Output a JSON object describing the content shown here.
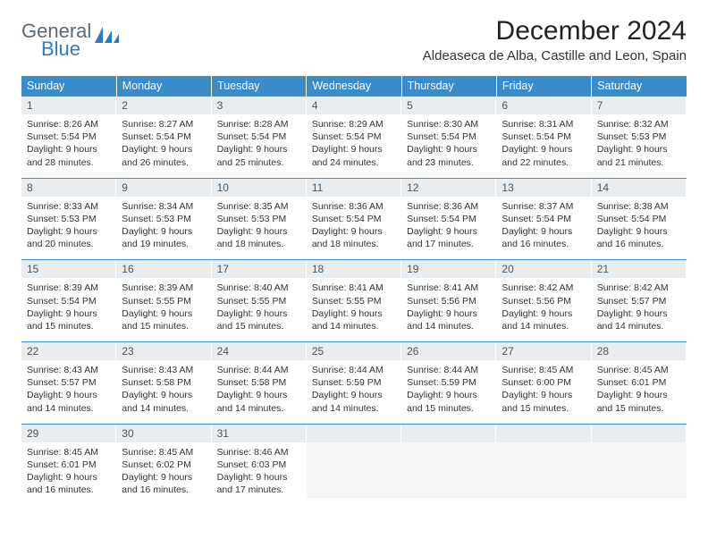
{
  "logo": {
    "textA": "General",
    "textB": "Blue",
    "colorA": "#5a6a7a",
    "colorB": "#2d7cc1"
  },
  "title": "December 2024",
  "location": "Aldeaseca de Alba, Castille and Leon, Spain",
  "colors": {
    "header_bg": "#3a8bc9",
    "header_text": "#ffffff",
    "daynum_bg": "#e9edf0",
    "daynum_text": "#4a5560",
    "row_border": "#3a8bc9",
    "body_text": "#333333"
  },
  "days_of_week": [
    "Sunday",
    "Monday",
    "Tuesday",
    "Wednesday",
    "Thursday",
    "Friday",
    "Saturday"
  ],
  "weeks": [
    [
      {
        "n": "1",
        "sunrise": "8:26 AM",
        "sunset": "5:54 PM",
        "daylight": "9 hours and 28 minutes."
      },
      {
        "n": "2",
        "sunrise": "8:27 AM",
        "sunset": "5:54 PM",
        "daylight": "9 hours and 26 minutes."
      },
      {
        "n": "3",
        "sunrise": "8:28 AM",
        "sunset": "5:54 PM",
        "daylight": "9 hours and 25 minutes."
      },
      {
        "n": "4",
        "sunrise": "8:29 AM",
        "sunset": "5:54 PM",
        "daylight": "9 hours and 24 minutes."
      },
      {
        "n": "5",
        "sunrise": "8:30 AM",
        "sunset": "5:54 PM",
        "daylight": "9 hours and 23 minutes."
      },
      {
        "n": "6",
        "sunrise": "8:31 AM",
        "sunset": "5:54 PM",
        "daylight": "9 hours and 22 minutes."
      },
      {
        "n": "7",
        "sunrise": "8:32 AM",
        "sunset": "5:53 PM",
        "daylight": "9 hours and 21 minutes."
      }
    ],
    [
      {
        "n": "8",
        "sunrise": "8:33 AM",
        "sunset": "5:53 PM",
        "daylight": "9 hours and 20 minutes."
      },
      {
        "n": "9",
        "sunrise": "8:34 AM",
        "sunset": "5:53 PM",
        "daylight": "9 hours and 19 minutes."
      },
      {
        "n": "10",
        "sunrise": "8:35 AM",
        "sunset": "5:53 PM",
        "daylight": "9 hours and 18 minutes."
      },
      {
        "n": "11",
        "sunrise": "8:36 AM",
        "sunset": "5:54 PM",
        "daylight": "9 hours and 18 minutes."
      },
      {
        "n": "12",
        "sunrise": "8:36 AM",
        "sunset": "5:54 PM",
        "daylight": "9 hours and 17 minutes."
      },
      {
        "n": "13",
        "sunrise": "8:37 AM",
        "sunset": "5:54 PM",
        "daylight": "9 hours and 16 minutes."
      },
      {
        "n": "14",
        "sunrise": "8:38 AM",
        "sunset": "5:54 PM",
        "daylight": "9 hours and 16 minutes."
      }
    ],
    [
      {
        "n": "15",
        "sunrise": "8:39 AM",
        "sunset": "5:54 PM",
        "daylight": "9 hours and 15 minutes."
      },
      {
        "n": "16",
        "sunrise": "8:39 AM",
        "sunset": "5:55 PM",
        "daylight": "9 hours and 15 minutes."
      },
      {
        "n": "17",
        "sunrise": "8:40 AM",
        "sunset": "5:55 PM",
        "daylight": "9 hours and 15 minutes."
      },
      {
        "n": "18",
        "sunrise": "8:41 AM",
        "sunset": "5:55 PM",
        "daylight": "9 hours and 14 minutes."
      },
      {
        "n": "19",
        "sunrise": "8:41 AM",
        "sunset": "5:56 PM",
        "daylight": "9 hours and 14 minutes."
      },
      {
        "n": "20",
        "sunrise": "8:42 AM",
        "sunset": "5:56 PM",
        "daylight": "9 hours and 14 minutes."
      },
      {
        "n": "21",
        "sunrise": "8:42 AM",
        "sunset": "5:57 PM",
        "daylight": "9 hours and 14 minutes."
      }
    ],
    [
      {
        "n": "22",
        "sunrise": "8:43 AM",
        "sunset": "5:57 PM",
        "daylight": "9 hours and 14 minutes."
      },
      {
        "n": "23",
        "sunrise": "8:43 AM",
        "sunset": "5:58 PM",
        "daylight": "9 hours and 14 minutes."
      },
      {
        "n": "24",
        "sunrise": "8:44 AM",
        "sunset": "5:58 PM",
        "daylight": "9 hours and 14 minutes."
      },
      {
        "n": "25",
        "sunrise": "8:44 AM",
        "sunset": "5:59 PM",
        "daylight": "9 hours and 14 minutes."
      },
      {
        "n": "26",
        "sunrise": "8:44 AM",
        "sunset": "5:59 PM",
        "daylight": "9 hours and 15 minutes."
      },
      {
        "n": "27",
        "sunrise": "8:45 AM",
        "sunset": "6:00 PM",
        "daylight": "9 hours and 15 minutes."
      },
      {
        "n": "28",
        "sunrise": "8:45 AM",
        "sunset": "6:01 PM",
        "daylight": "9 hours and 15 minutes."
      }
    ],
    [
      {
        "n": "29",
        "sunrise": "8:45 AM",
        "sunset": "6:01 PM",
        "daylight": "9 hours and 16 minutes."
      },
      {
        "n": "30",
        "sunrise": "8:45 AM",
        "sunset": "6:02 PM",
        "daylight": "9 hours and 16 minutes."
      },
      {
        "n": "31",
        "sunrise": "8:46 AM",
        "sunset": "6:03 PM",
        "daylight": "9 hours and 17 minutes."
      },
      {
        "empty": true
      },
      {
        "empty": true
      },
      {
        "empty": true
      },
      {
        "empty": true
      }
    ]
  ],
  "labels": {
    "sunrise": "Sunrise: ",
    "sunset": "Sunset: ",
    "daylight": "Daylight: "
  }
}
